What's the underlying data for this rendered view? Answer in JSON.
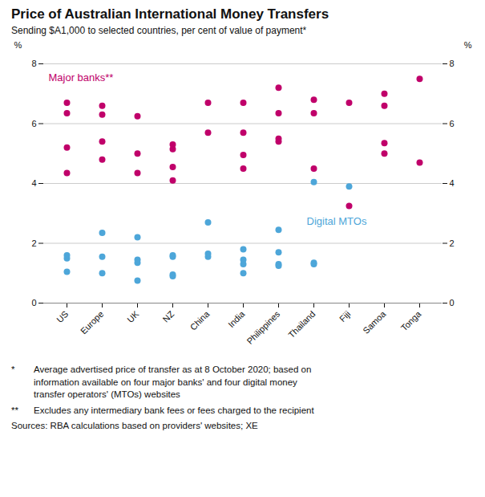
{
  "chart_data": {
    "type": "scatter",
    "title": "Price of Australian International Money Transfers",
    "subtitle": "Sending $A1,000 to selected countries, per cent of value of payment*",
    "ylabel": "%",
    "y2label": "%",
    "categories": [
      "US",
      "Europe",
      "UK",
      "NZ",
      "China",
      "India",
      "Philippines",
      "Thailand",
      "Fiji",
      "Samoa",
      "Tonga"
    ],
    "series": [
      {
        "name": "Major banks**",
        "color": "#c0006a",
        "values": [
          [
            4.35,
            5.2,
            6.35,
            6.7
          ],
          [
            4.8,
            5.4,
            6.3,
            6.6
          ],
          [
            4.35,
            5.0,
            6.25
          ],
          [
            4.1,
            4.55,
            5.15,
            5.3
          ],
          [
            5.7,
            6.7
          ],
          [
            4.5,
            4.95,
            5.7,
            6.7
          ],
          [
            5.4,
            5.5,
            6.35,
            7.2
          ],
          [
            4.5,
            6.35,
            6.8
          ],
          [
            3.25,
            6.7
          ],
          [
            5.0,
            5.35,
            6.6,
            7.0
          ],
          [
            4.7,
            7.5
          ]
        ]
      },
      {
        "name": "Digital MTOs",
        "color": "#4da6d9",
        "values": [
          [
            1.05,
            1.5,
            1.6
          ],
          [
            1.0,
            1.55,
            2.35
          ],
          [
            0.75,
            1.35,
            1.45,
            2.2
          ],
          [
            0.9,
            0.95,
            1.55,
            1.6
          ],
          [
            1.55,
            1.65,
            2.7
          ],
          [
            1.0,
            1.3,
            1.45,
            1.8
          ],
          [
            1.25,
            1.3,
            1.7,
            2.45
          ],
          [
            1.3,
            1.35,
            4.05
          ],
          [
            3.9
          ],
          [],
          []
        ]
      }
    ],
    "ylim": [
      0,
      8
    ],
    "yticks": [
      0,
      2,
      4,
      6,
      8
    ],
    "grid": true,
    "footnotes": [
      {
        "symbol": "*",
        "text": "Average advertised price of transfer as at 8 October 2020; based on\ninformation available on four major banks' and four digital money\ntransfer operators' (MTOs) websites"
      },
      {
        "symbol": "**",
        "text": "Excludes any intermediary bank fees or fees charged to the recipient"
      }
    ],
    "source": "Sources: RBA calculations based on providers' websites; XE"
  }
}
